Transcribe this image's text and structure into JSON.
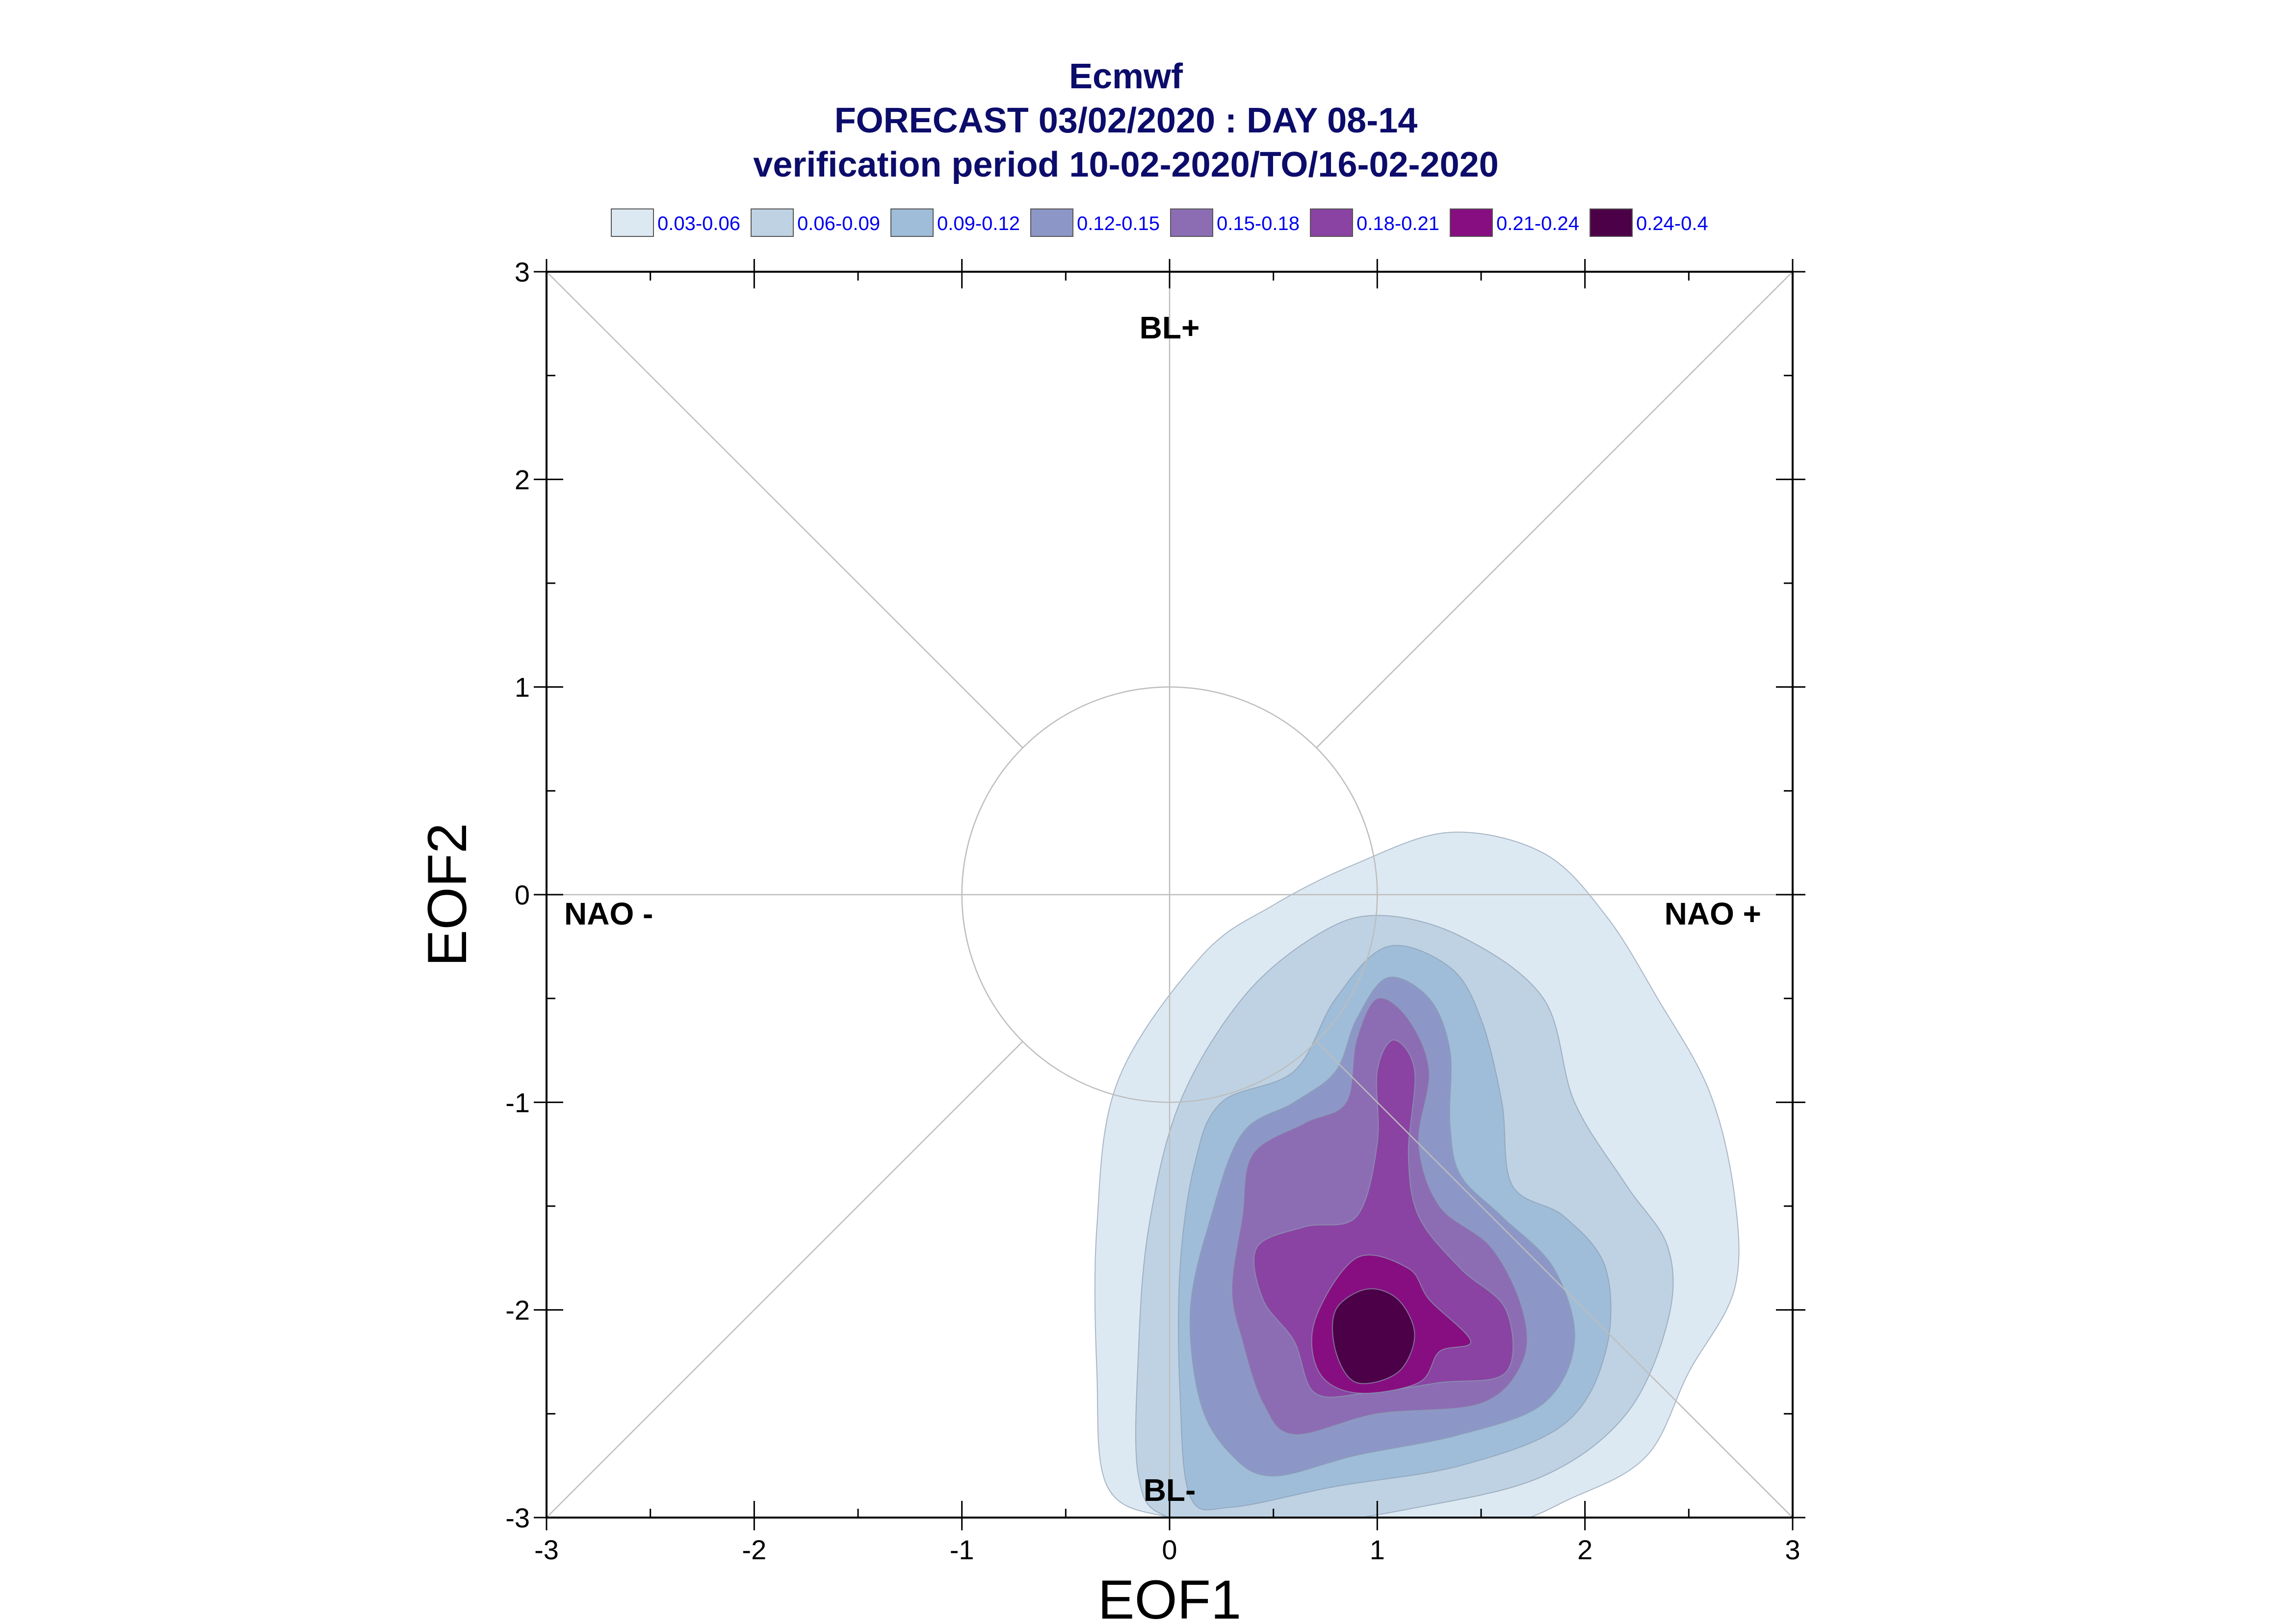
{
  "chart_data": {
    "type": "contour",
    "title_lines": [
      "Ecmwf",
      "FORECAST 03/02/2020 : DAY 08-14",
      "verification period 10-02-2020/TO/16-02-2020"
    ],
    "xlabel": "EOF1",
    "ylabel": "EOF2",
    "xlim": [
      -3,
      3
    ],
    "ylim": [
      -3,
      3
    ],
    "xticks": [
      "-3",
      "-2",
      "-1",
      "0",
      "1",
      "2",
      "3"
    ],
    "yticks": [
      "-3",
      "-2",
      "-1",
      "0",
      "1",
      "2",
      "3"
    ],
    "annotations": {
      "top": "BL+",
      "bottom": "BL-",
      "left": "NAO -",
      "right": "NAO +"
    },
    "legend": {
      "placement": "top",
      "entries": [
        {
          "label": "0.03-0.06",
          "color": "#dde9f2"
        },
        {
          "label": "0.06-0.09",
          "color": "#bed2e3"
        },
        {
          "label": "0.09-0.12",
          "color": "#9fbdd9"
        },
        {
          "label": "0.12-0.15",
          "color": "#8d97c7"
        },
        {
          "label": "0.15-0.18",
          "color": "#8c6db4"
        },
        {
          "label": "0.18-0.21",
          "color": "#8a43a2"
        },
        {
          "label": "0.21-0.24",
          "color": "#870e80"
        },
        {
          "label": "0.24-0.4",
          "color": "#4c0047"
        }
      ]
    },
    "reference_circle_radius": 1,
    "density_levels": [
      {
        "level": "0.03-0.06",
        "polygon": [
          [
            1.35,
            0.3
          ],
          [
            1.8,
            0.2
          ],
          [
            2.1,
            -0.1
          ],
          [
            2.35,
            -0.5
          ],
          [
            2.6,
            -0.95
          ],
          [
            2.72,
            -1.45
          ],
          [
            2.72,
            -1.9
          ],
          [
            2.5,
            -2.3
          ],
          [
            2.3,
            -2.7
          ],
          [
            1.95,
            -2.9
          ],
          [
            1.5,
            -3.05
          ],
          [
            0.5,
            -3.05
          ],
          [
            0.0,
            -3.0
          ],
          [
            -0.3,
            -2.85
          ],
          [
            -0.35,
            -2.3
          ],
          [
            -0.35,
            -1.6
          ],
          [
            -0.25,
            -0.9
          ],
          [
            0.15,
            -0.3
          ],
          [
            0.5,
            -0.05
          ],
          [
            0.9,
            0.15
          ]
        ]
      },
      {
        "level": "0.06-0.09",
        "polygon": [
          [
            1.0,
            -0.1
          ],
          [
            1.4,
            -0.2
          ],
          [
            1.8,
            -0.5
          ],
          [
            1.95,
            -1.0
          ],
          [
            2.2,
            -1.4
          ],
          [
            2.4,
            -1.7
          ],
          [
            2.4,
            -2.05
          ],
          [
            2.2,
            -2.5
          ],
          [
            1.8,
            -2.8
          ],
          [
            1.2,
            -2.95
          ],
          [
            0.5,
            -3.05
          ],
          [
            0.0,
            -3.0
          ],
          [
            -0.15,
            -2.8
          ],
          [
            -0.15,
            -2.2
          ],
          [
            -0.1,
            -1.6
          ],
          [
            0.05,
            -1.0
          ],
          [
            0.35,
            -0.5
          ],
          [
            0.7,
            -0.2
          ]
        ]
      },
      {
        "level": "0.09-0.12",
        "polygon": [
          [
            1.05,
            -0.25
          ],
          [
            1.35,
            -0.35
          ],
          [
            1.5,
            -0.6
          ],
          [
            1.6,
            -1.0
          ],
          [
            1.65,
            -1.4
          ],
          [
            1.9,
            -1.55
          ],
          [
            2.1,
            -1.8
          ],
          [
            2.1,
            -2.2
          ],
          [
            1.9,
            -2.55
          ],
          [
            1.4,
            -2.75
          ],
          [
            0.8,
            -2.85
          ],
          [
            0.3,
            -2.95
          ],
          [
            0.1,
            -2.9
          ],
          [
            0.05,
            -2.4
          ],
          [
            0.05,
            -1.8
          ],
          [
            0.12,
            -1.3
          ],
          [
            0.25,
            -1.0
          ],
          [
            0.6,
            -0.85
          ],
          [
            0.8,
            -0.5
          ]
        ]
      },
      {
        "level": "0.12-0.15",
        "polygon": [
          [
            1.05,
            -0.4
          ],
          [
            1.25,
            -0.5
          ],
          [
            1.35,
            -0.75
          ],
          [
            1.35,
            -1.1
          ],
          [
            1.4,
            -1.35
          ],
          [
            1.6,
            -1.55
          ],
          [
            1.85,
            -1.8
          ],
          [
            1.95,
            -2.15
          ],
          [
            1.8,
            -2.45
          ],
          [
            1.4,
            -2.6
          ],
          [
            0.9,
            -2.7
          ],
          [
            0.5,
            -2.8
          ],
          [
            0.3,
            -2.7
          ],
          [
            0.15,
            -2.45
          ],
          [
            0.1,
            -2.0
          ],
          [
            0.2,
            -1.55
          ],
          [
            0.35,
            -1.15
          ],
          [
            0.6,
            -1.0
          ],
          [
            0.8,
            -0.85
          ],
          [
            0.9,
            -0.6
          ]
        ]
      },
      {
        "level": "0.15-0.18",
        "polygon": [
          [
            1.0,
            -0.5
          ],
          [
            1.15,
            -0.6
          ],
          [
            1.25,
            -0.85
          ],
          [
            1.2,
            -1.2
          ],
          [
            1.3,
            -1.5
          ],
          [
            1.55,
            -1.7
          ],
          [
            1.7,
            -2.0
          ],
          [
            1.7,
            -2.25
          ],
          [
            1.5,
            -2.45
          ],
          [
            1.0,
            -2.5
          ],
          [
            0.6,
            -2.6
          ],
          [
            0.45,
            -2.45
          ],
          [
            0.35,
            -2.15
          ],
          [
            0.3,
            -1.9
          ],
          [
            0.35,
            -1.55
          ],
          [
            0.4,
            -1.25
          ],
          [
            0.65,
            -1.1
          ],
          [
            0.85,
            -1.0
          ],
          [
            0.9,
            -0.7
          ]
        ]
      },
      {
        "level": "0.18-0.21",
        "polygon": [
          [
            1.08,
            -0.7
          ],
          [
            1.18,
            -0.85
          ],
          [
            1.15,
            -1.25
          ],
          [
            1.2,
            -1.55
          ],
          [
            1.4,
            -1.8
          ],
          [
            1.62,
            -2.0
          ],
          [
            1.62,
            -2.3
          ],
          [
            1.3,
            -2.35
          ],
          [
            0.95,
            -2.4
          ],
          [
            0.7,
            -2.4
          ],
          [
            0.6,
            -2.15
          ],
          [
            0.45,
            -1.95
          ],
          [
            0.42,
            -1.7
          ],
          [
            0.65,
            -1.6
          ],
          [
            0.9,
            -1.55
          ],
          [
            1.0,
            -1.2
          ],
          [
            1.0,
            -0.85
          ]
        ]
      },
      {
        "level": "0.21-0.24",
        "polygon": [
          [
            0.9,
            -1.75
          ],
          [
            1.15,
            -1.8
          ],
          [
            1.25,
            -1.95
          ],
          [
            1.45,
            -2.15
          ],
          [
            1.3,
            -2.2
          ],
          [
            1.2,
            -2.35
          ],
          [
            0.9,
            -2.4
          ],
          [
            0.72,
            -2.3
          ],
          [
            0.7,
            -2.05
          ]
        ]
      },
      {
        "level": "0.24-0.4",
        "polygon": [
          [
            0.95,
            -1.9
          ],
          [
            1.1,
            -1.95
          ],
          [
            1.18,
            -2.12
          ],
          [
            1.1,
            -2.3
          ],
          [
            0.9,
            -2.35
          ],
          [
            0.8,
            -2.2
          ],
          [
            0.8,
            -2.0
          ]
        ]
      }
    ]
  }
}
